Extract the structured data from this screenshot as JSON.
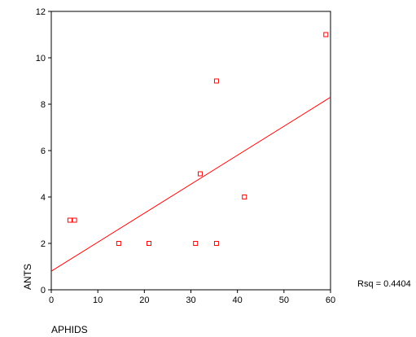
{
  "chart_data": {
    "type": "scatter",
    "title": "",
    "xlabel": "APHIDS",
    "ylabel": "ANTS",
    "xlim": [
      0,
      60
    ],
    "ylim": [
      0,
      12
    ],
    "xticks": [
      0,
      10,
      20,
      30,
      40,
      50,
      60
    ],
    "yticks": [
      0,
      2,
      4,
      6,
      8,
      10,
      12
    ],
    "grid": false,
    "marker_color": "#ff0000",
    "line_color": "#ff0000",
    "points": [
      {
        "x": 4,
        "y": 3
      },
      {
        "x": 5,
        "y": 3
      },
      {
        "x": 14.5,
        "y": 2
      },
      {
        "x": 21,
        "y": 2
      },
      {
        "x": 31,
        "y": 2
      },
      {
        "x": 32,
        "y": 5
      },
      {
        "x": 35.5,
        "y": 9
      },
      {
        "x": 35.5,
        "y": 2
      },
      {
        "x": 41.5,
        "y": 4
      },
      {
        "x": 59,
        "y": 11
      }
    ],
    "fit_line": {
      "x": [
        0,
        60
      ],
      "y": [
        0.8,
        8.3
      ]
    },
    "annotation": "Rsq = 0.4404"
  }
}
